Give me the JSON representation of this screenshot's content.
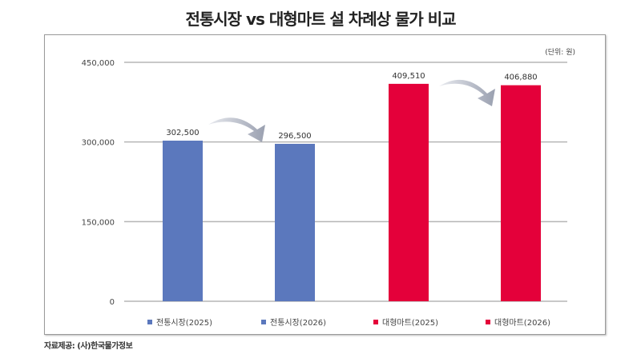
{
  "chart_data": {
    "type": "bar",
    "title": "전통시장 vs 대형마트 설 차례상 물가 비교",
    "unit": "(단위: 원)",
    "categories": [
      "전통시장(2025)",
      "전통시장(2026)",
      "대형마트(2025)",
      "대형마트(2026)"
    ],
    "values": [
      302500,
      296500,
      409510,
      406880
    ],
    "value_labels": [
      "302,500",
      "296,500",
      "409,510",
      "406,880"
    ],
    "colors": [
      "#5b78bd",
      "#5b78bd",
      "#e4003a",
      "#e4003a"
    ],
    "ylim": [
      0,
      450000
    ],
    "yticks": [
      0,
      150000,
      300000,
      450000
    ],
    "ytick_labels": [
      "0",
      "150,000",
      "300,000",
      "450,000"
    ],
    "grid": true,
    "legend_placement": "bottom",
    "annotations": [
      "decrease arrow 2025→2026 (전통시장)",
      "decrease arrow 2025→2026 (대형마트)"
    ]
  },
  "source": "자료제공: (사)한국물가정보"
}
